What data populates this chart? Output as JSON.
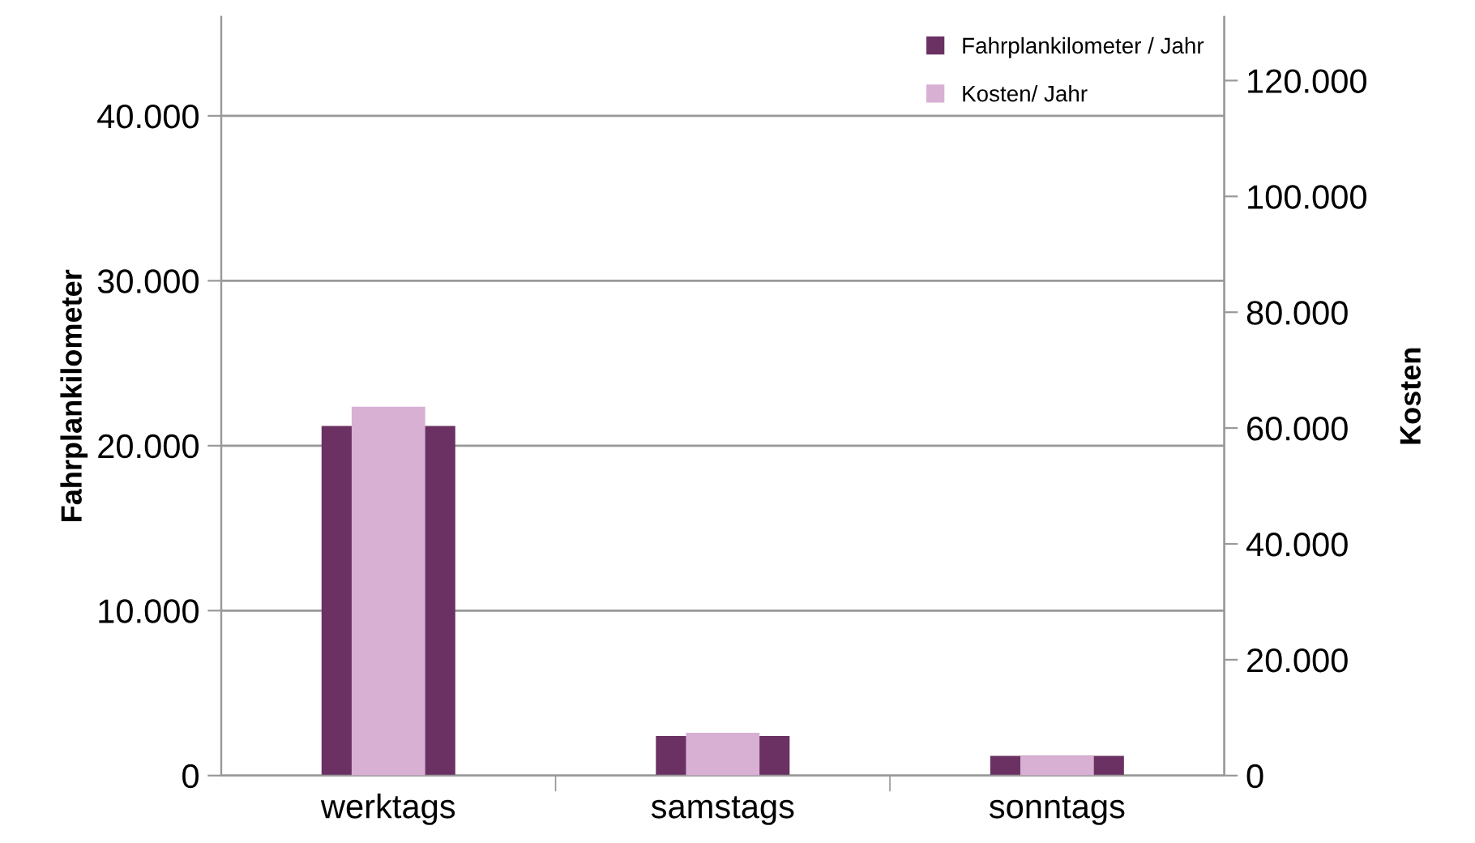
{
  "chart_data": {
    "type": "bar",
    "ylabel": "Fahrplankilometer",
    "y2label": "Kosten",
    "categories": [
      "werktags",
      "samstags",
      "sonntags"
    ],
    "series": [
      {
        "name": "Fahrplankilometer / Jahr",
        "color": "#6b3163",
        "values": [
          21200,
          2400,
          1200
        ]
      },
      {
        "name": "Kosten/ Jahr",
        "color": "#d7b0d4",
        "values": [
          63700,
          7400,
          3400
        ],
        "axis": "y2"
      }
    ],
    "ylim": [
      0,
      46000
    ],
    "yticks": [
      {
        "value": 0,
        "label": "0"
      },
      {
        "value": 10000,
        "label": "10.000"
      },
      {
        "value": 20000,
        "label": "20.000"
      },
      {
        "value": 30000,
        "label": "30.000"
      },
      {
        "value": 40000,
        "label": "40.000"
      }
    ],
    "y2lim": [
      0,
      131000
    ],
    "y2ticks": [
      {
        "value": 0,
        "label": "0"
      },
      {
        "value": 20000,
        "label": "20.000"
      },
      {
        "value": 40000,
        "label": "40.000"
      },
      {
        "value": 60000,
        "label": "60.000"
      },
      {
        "value": 80000,
        "label": "80.000"
      },
      {
        "value": 100000,
        "label": "100.000"
      },
      {
        "value": 120000,
        "label": "120.000"
      }
    ],
    "grid": "y",
    "legend": "top right"
  }
}
